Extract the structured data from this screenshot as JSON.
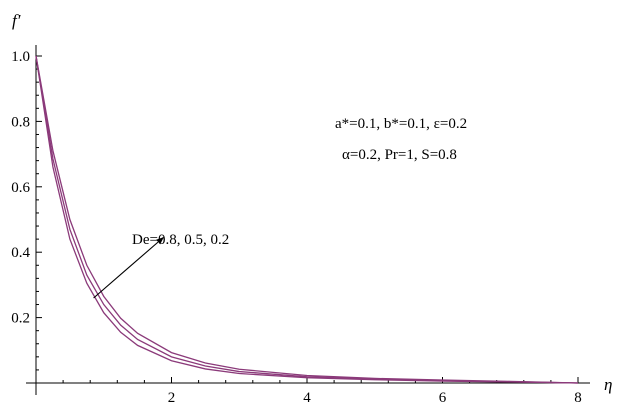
{
  "chart_data": {
    "type": "line",
    "xlabel": "η",
    "ylabel": "f′",
    "xlim": [
      0,
      8
    ],
    "ylim": [
      0,
      1.0
    ],
    "x_ticks": [
      2,
      4,
      6,
      8
    ],
    "y_ticks": [
      0.2,
      0.4,
      0.6,
      0.8,
      1.0
    ],
    "x_tick_labels": [
      "2",
      "4",
      "6",
      "8"
    ],
    "y_tick_labels": [
      "0.2",
      "0.4",
      "0.6",
      "0.8",
      "1.0"
    ],
    "grid": false,
    "series_color": "#8b3a7a",
    "x": [
      0,
      0.25,
      0.5,
      0.75,
      1.0,
      1.25,
      1.5,
      2.0,
      2.5,
      3.0,
      4.0,
      5.0,
      6.0,
      7.0,
      8.0
    ],
    "series": [
      {
        "values": [
          1.0,
          0.66,
          0.44,
          0.305,
          0.215,
          0.155,
          0.115,
          0.068,
          0.043,
          0.029,
          0.016,
          0.01,
          0.006,
          0.003,
          0.0
        ]
      },
      {
        "values": [
          1.0,
          0.685,
          0.47,
          0.33,
          0.24,
          0.177,
          0.133,
          0.08,
          0.052,
          0.035,
          0.019,
          0.012,
          0.007,
          0.004,
          0.0
        ]
      },
      {
        "values": [
          1.0,
          0.71,
          0.5,
          0.36,
          0.265,
          0.198,
          0.152,
          0.093,
          0.061,
          0.042,
          0.023,
          0.014,
          0.009,
          0.005,
          0.0
        ]
      }
    ],
    "annotations": {
      "arrow_label": "De=0.8, 0.5, 0.2",
      "arrow_from": [
        0.85,
        0.26
      ],
      "arrow_to": [
        1.88,
        0.445
      ],
      "params_line1": "a*=0.1, b*=0.1, ε=0.2",
      "params_line2": "α=0.2, Pr=1, S=0.8"
    }
  }
}
